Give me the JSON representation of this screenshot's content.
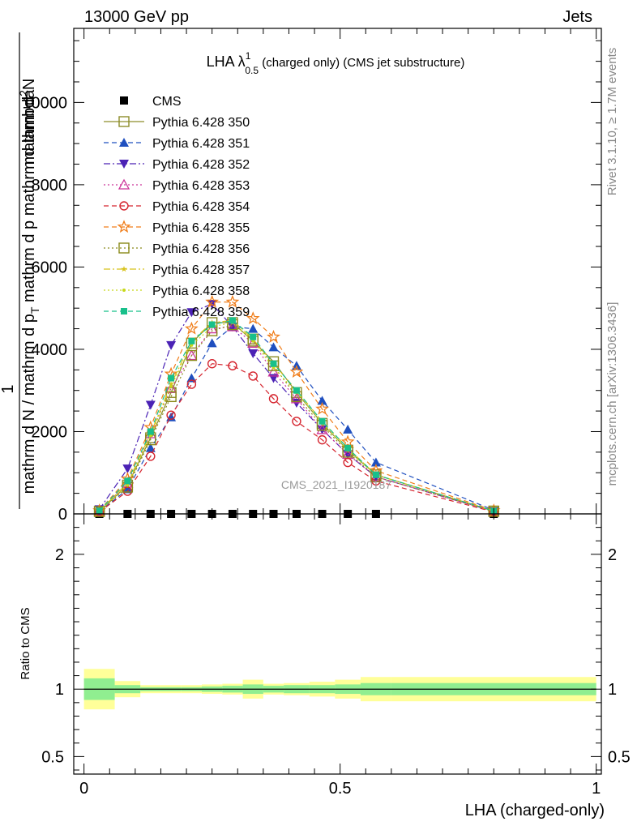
{
  "header": {
    "left": "13000 GeV pp",
    "right": "Jets"
  },
  "side_labels": {
    "rivet": "Rivet 3.1.10, ≥ 1.7M events",
    "mcplots": "mcplots.cern.ch [arXiv:1306.3436]"
  },
  "watermark": "CMS_2021_I1920187",
  "chart_data": [
    {
      "type": "line",
      "title": {
        "prefix": "LHA ",
        "lambda": "λ",
        "sup": "1",
        "sub": "0.5",
        "rest": " (charged only) (CMS jet substructure)"
      },
      "ylabel": {
        "num_one": "1",
        "num_parts": [
          "mathrm d N / mathrm d p",
          "T",
          " mathrm d p mathrm d lambda"
        ],
        "den_parts": [
          "mathrm d",
          "2",
          "N"
        ]
      },
      "xlim": [
        -0.02,
        1.01
      ],
      "ylim": [
        0,
        11800
      ],
      "yticks": [
        0,
        2000,
        4000,
        6000,
        8000,
        10000
      ],
      "ytick_labels": [
        "0",
        "2000",
        "4000",
        "6000",
        "8000",
        "10000"
      ],
      "x": [
        0.03,
        0.085,
        0.13,
        0.17,
        0.21,
        0.25,
        0.29,
        0.33,
        0.37,
        0.415,
        0.465,
        0.515,
        0.57,
        0.8
      ],
      "series": [
        {
          "name": "CMS",
          "color": "#000000",
          "marker": "square-filled",
          "dash": "none",
          "values": [
            0,
            0,
            0,
            0,
            0,
            0,
            0,
            0,
            0,
            0,
            0,
            0,
            0,
            0
          ]
        },
        {
          "name": "Pythia 6.428 350",
          "color": "#8d8d2a",
          "marker": "square-open",
          "dash": "solid",
          "values": [
            60,
            700,
            1850,
            2950,
            4150,
            4650,
            4650,
            4200,
            3700,
            2950,
            2200,
            1550,
            950,
            70
          ]
        },
        {
          "name": "Pythia 6.428 351",
          "color": "#1f4fbf",
          "marker": "triangle-up-filled",
          "dash": "dashed",
          "values": [
            50,
            600,
            1600,
            2350,
            3300,
            4150,
            4550,
            4500,
            4050,
            3600,
            2750,
            2050,
            1250,
            90
          ]
        },
        {
          "name": "Pythia 6.428 352",
          "color": "#4b22b5",
          "marker": "triangle-down-filled",
          "dash": "dashdot",
          "values": [
            110,
            1100,
            2650,
            4100,
            4900,
            5100,
            4550,
            3900,
            3300,
            2700,
            2050,
            1450,
            900,
            60
          ]
        },
        {
          "name": "Pythia 6.428 353",
          "color": "#cc3399",
          "marker": "triangle-up-open",
          "dash": "dotted",
          "values": [
            70,
            750,
            1950,
            3050,
            3850,
            4500,
            4550,
            4150,
            3450,
            2800,
            2050,
            1450,
            900,
            60
          ]
        },
        {
          "name": "Pythia 6.428 354",
          "color": "#d5242e",
          "marker": "circle-open",
          "dash": "dashed",
          "values": [
            50,
            550,
            1400,
            2400,
            3150,
            3650,
            3600,
            3350,
            2800,
            2250,
            1800,
            1250,
            800,
            50
          ]
        },
        {
          "name": "Pythia 6.428 355",
          "color": "#f07e1b",
          "marker": "star-open",
          "dash": "dashed",
          "values": [
            80,
            850,
            2100,
            3400,
            4500,
            5150,
            5150,
            4750,
            4300,
            3450,
            2550,
            1750,
            1050,
            80
          ]
        },
        {
          "name": "Pythia 6.428 356",
          "color": "#8a8a1a",
          "marker": "square-open",
          "dash": "dotted",
          "values": [
            60,
            650,
            1800,
            2850,
            3850,
            4450,
            4600,
            4250,
            3600,
            2850,
            2150,
            1500,
            900,
            60
          ]
        },
        {
          "name": "Pythia 6.428 357",
          "color": "#d8c21a",
          "marker": "star-small",
          "dash": "dashdot",
          "values": [
            70,
            750,
            1950,
            3150,
            4200,
            4650,
            4700,
            4250,
            3650,
            3000,
            2250,
            1600,
            950,
            70
          ]
        },
        {
          "name": "Pythia 6.428 358",
          "color": "#c7d81a",
          "marker": "dot",
          "dash": "dotted",
          "values": [
            70,
            700,
            1900,
            3100,
            4100,
            4550,
            4650,
            4200,
            3550,
            2950,
            2200,
            1550,
            950,
            70
          ]
        },
        {
          "name": "Pythia 6.428 359",
          "color": "#18c08b",
          "marker": "square-filled-small",
          "dash": "dashed",
          "values": [
            75,
            800,
            2000,
            3300,
            4200,
            4600,
            4700,
            4300,
            3650,
            3000,
            2250,
            1600,
            950,
            70
          ]
        }
      ]
    },
    {
      "type": "area",
      "ylabel": "Ratio to CMS",
      "xlabel": "LHA (charged-only)",
      "xlim": [
        -0.02,
        1.01
      ],
      "ylim": [
        0.37,
        2.3
      ],
      "xticks": [
        0,
        0.5,
        1
      ],
      "xtick_labels": [
        "0",
        "0.5",
        "1"
      ],
      "yticks": [
        0.5,
        1,
        2
      ],
      "ytick_labels": [
        "0.5",
        "1",
        "2"
      ],
      "bin_edges": [
        0,
        0.06,
        0.11,
        0.15,
        0.19,
        0.23,
        0.27,
        0.31,
        0.35,
        0.39,
        0.44,
        0.49,
        0.54,
        0.6,
        1.0
      ],
      "band_stat": {
        "color": "#90ee90",
        "lo": [
          0.92,
          0.97,
          0.985,
          0.985,
          0.985,
          0.98,
          0.975,
          0.965,
          0.975,
          0.97,
          0.97,
          0.965,
          0.955,
          0.955
        ],
        "hi": [
          1.08,
          1.03,
          1.015,
          1.015,
          1.015,
          1.02,
          1.025,
          1.035,
          1.025,
          1.03,
          1.03,
          1.035,
          1.045,
          1.045
        ]
      },
      "band_total": {
        "color": "#ffff99",
        "lo": [
          0.85,
          0.94,
          0.97,
          0.97,
          0.97,
          0.965,
          0.96,
          0.93,
          0.96,
          0.955,
          0.945,
          0.93,
          0.91,
          0.91
        ],
        "hi": [
          1.15,
          1.06,
          1.03,
          1.03,
          1.03,
          1.035,
          1.04,
          1.07,
          1.04,
          1.045,
          1.055,
          1.07,
          1.09,
          1.09
        ]
      },
      "reference": 1
    }
  ]
}
